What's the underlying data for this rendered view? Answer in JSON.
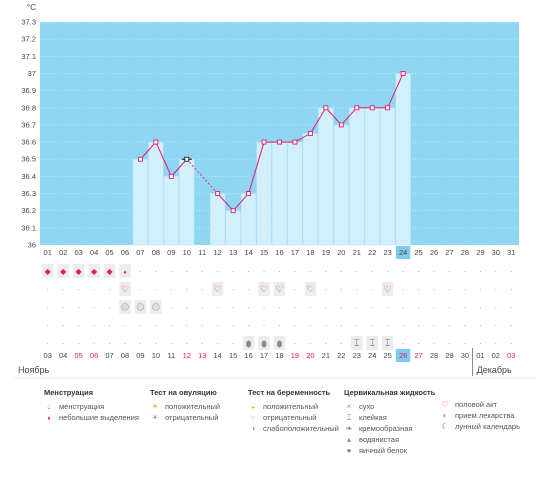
{
  "chart_data": {
    "type": "bar",
    "unit": "°C",
    "ylim": [
      36,
      37.3
    ],
    "yticks": [
      "36",
      "36.1",
      "36.2",
      "36.3",
      "36.4",
      "36.5",
      "36.6",
      "36.7",
      "36.8",
      "36.9",
      "37",
      "37.1",
      "37.2",
      "37.3"
    ],
    "cycle_days": [
      "01",
      "02",
      "03",
      "04",
      "05",
      "06",
      "07",
      "08",
      "09",
      "10",
      "11",
      "12",
      "13",
      "14",
      "15",
      "16",
      "17",
      "18",
      "19",
      "20",
      "21",
      "22",
      "23",
      "24",
      "25",
      "26",
      "27",
      "28",
      "29",
      "30",
      "31"
    ],
    "temperatures": [
      null,
      null,
      null,
      null,
      null,
      null,
      36.5,
      36.6,
      36.4,
      36.5,
      null,
      36.3,
      36.2,
      36.3,
      36.6,
      36.6,
      36.6,
      36.65,
      36.8,
      36.7,
      36.8,
      36.8,
      36.8,
      37.0,
      null,
      null,
      null,
      null,
      null,
      null,
      null
    ],
    "excluded_day": "10",
    "current_day": "24",
    "dates": [
      "03",
      "04",
      "05",
      "06",
      "07",
      "08",
      "09",
      "10",
      "11",
      "12",
      "13",
      "14",
      "15",
      "16",
      "17",
      "18",
      "19",
      "20",
      "21",
      "22",
      "23",
      "24",
      "25",
      "26",
      "27",
      "28",
      "29",
      "30",
      "01",
      "02",
      "03"
    ],
    "weekend_dates": [
      2,
      3,
      9,
      10,
      16,
      17,
      23,
      24,
      30
    ],
    "current_date_index": 23,
    "month_labels": [
      "Ноябрь",
      "Декабрь"
    ],
    "menstruation_rows": [
      "heavy",
      "heavy",
      "heavy",
      "heavy",
      "heavy",
      "light"
    ],
    "intercourse_days": [
      5,
      11,
      14,
      15,
      17,
      22
    ],
    "medication_days": [
      5,
      6,
      7
    ],
    "egg_white_days": [
      13,
      14,
      15
    ],
    "sticky_days": [
      20,
      21,
      22
    ]
  },
  "legend": {
    "menstruation": {
      "title": "Менструация",
      "items": [
        "менструация",
        "небольшие выделения"
      ]
    },
    "ovulation_test": {
      "title": "Тест на овуляцию",
      "items": [
        "положительный",
        "отрицательный"
      ]
    },
    "pregnancy_test": {
      "title": "Тест на беременность",
      "items": [
        "положительный",
        "отрицательный",
        "слабоположительный"
      ]
    },
    "cervical_fluid": {
      "title": "Цервикальная жидкость",
      "items": [
        "сухо",
        "клейкая",
        "кремообразная",
        "водянистая",
        "яичный белок"
      ]
    },
    "other": {
      "items": [
        "половой акт",
        "прием лекарства",
        "лунный календарь"
      ]
    }
  },
  "colors": {
    "plot_bg": "#8fd6f3",
    "bar": "#d2effc",
    "bar_edge": "#b5e0f5",
    "line": "#e3186d",
    "current": "#7fcbef",
    "weekend": "#e3186d"
  }
}
